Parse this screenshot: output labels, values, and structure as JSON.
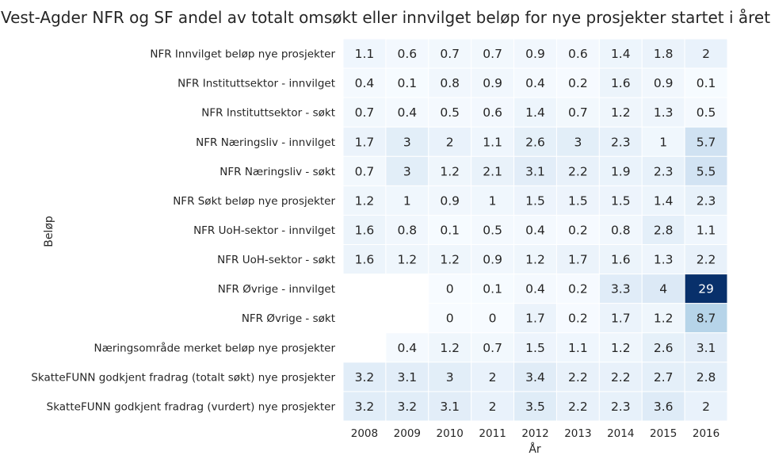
{
  "chart_data": {
    "type": "heatmap",
    "title": "Vest-Agder NFR og SF andel av totalt omsøkt eller innvilget beløp for nye prosjekter startet i året",
    "xlabel": "År",
    "ylabel": "Beløp",
    "columns": [
      "2008",
      "2009",
      "2010",
      "2011",
      "2012",
      "2013",
      "2014",
      "2015",
      "2016"
    ],
    "rows": [
      "NFR Innvilget beløp nye prosjekter",
      "NFR Instituttsektor - innvilget",
      "NFR Instituttsektor - søkt",
      "NFR Næringsliv - innvilget",
      "NFR Næringsliv - søkt",
      "NFR Søkt beløp nye prosjekter",
      "NFR UoH-sektor - innvilget",
      "NFR UoH-sektor - søkt",
      "NFR Øvrige - innvilget",
      "NFR Øvrige - søkt",
      "Næringsområde merket beløp nye prosjekter",
      "SkatteFUNN godkjent fradrag (totalt søkt) nye prosjekter",
      "SkatteFUNN godkjent fradrag (vurdert) nye prosjekter"
    ],
    "values": [
      [
        1.1,
        0.6,
        0.7,
        0.7,
        0.9,
        0.6,
        1.4,
        1.8,
        2
      ],
      [
        0.4,
        0.1,
        0.8,
        0.9,
        0.4,
        0.2,
        1.6,
        0.9,
        0.1
      ],
      [
        0.7,
        0.4,
        0.5,
        0.6,
        1.4,
        0.7,
        1.2,
        1.3,
        0.5
      ],
      [
        1.7,
        3,
        2,
        1.1,
        2.6,
        3,
        2.3,
        1,
        5.7
      ],
      [
        0.7,
        3,
        1.2,
        2.1,
        3.1,
        2.2,
        1.9,
        2.3,
        5.5
      ],
      [
        1.2,
        1,
        0.9,
        1,
        1.5,
        1.5,
        1.5,
        1.4,
        2.3
      ],
      [
        1.6,
        0.8,
        0.1,
        0.5,
        0.4,
        0.2,
        0.8,
        2.8,
        1.1
      ],
      [
        1.6,
        1.2,
        1.2,
        0.9,
        1.2,
        1.7,
        1.6,
        1.3,
        2.2
      ],
      [
        null,
        null,
        0,
        0.1,
        0.4,
        0.2,
        3.3,
        4,
        29
      ],
      [
        null,
        null,
        0,
        0,
        1.7,
        0.2,
        1.7,
        1.2,
        8.7
      ],
      [
        null,
        0.4,
        1.2,
        0.7,
        1.5,
        1.1,
        1.2,
        2.6,
        3.1
      ],
      [
        3.2,
        3.1,
        3,
        2,
        3.4,
        2.2,
        2.2,
        2.7,
        2.8
      ],
      [
        3.2,
        3.2,
        3.1,
        2,
        3.5,
        2.2,
        2.3,
        3.6,
        2
      ]
    ],
    "colormap": "Blues",
    "vmin": 0,
    "vmax": 29,
    "grid": false,
    "legend": "none"
  }
}
